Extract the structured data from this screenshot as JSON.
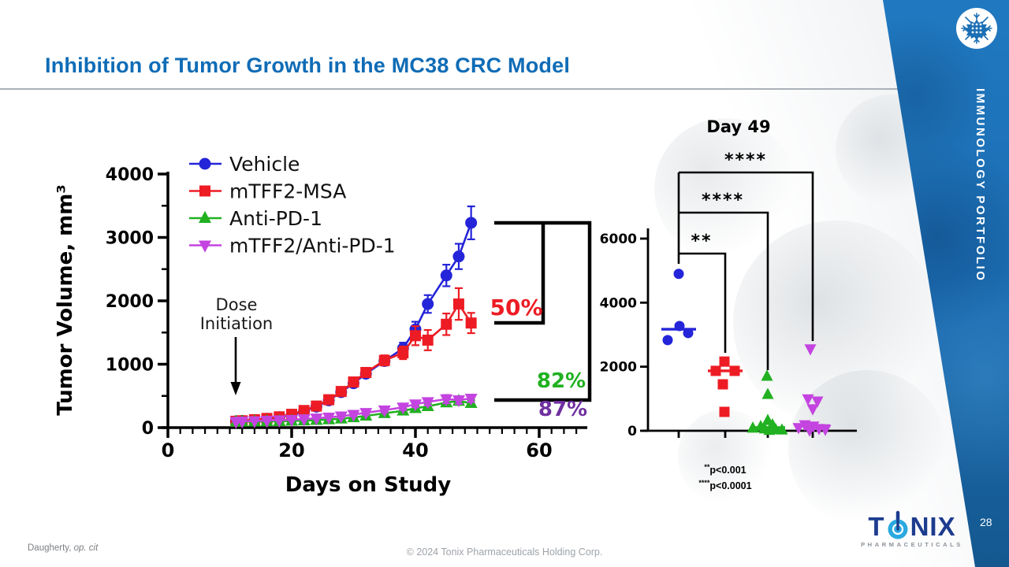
{
  "header": {
    "title": "Inhibition of Tumor Growth in the MC38 CRC Model",
    "title_color": "#0f6cb6"
  },
  "sidebar": {
    "label": "IMMUNOLOGY PORTFOLIO",
    "page_number": "28",
    "band_color": "#1c6fb4",
    "icon": "immune-cell-icon"
  },
  "footer": {
    "left_normal": "Daugherty, ",
    "left_italic": "op. cit",
    "center": "© 2024 Tonix Pharmaceuticals Holding Corp."
  },
  "logo": {
    "t1": "T",
    "o_icon": "power-button-o-icon",
    "t2": "NIX",
    "subtitle": "PHARMACEUTICALS",
    "dark_blue": "#1d3c8f",
    "light_blue": "#2aa9e0"
  },
  "chart_data": [
    {
      "type": "line",
      "title": "",
      "xlabel": "Days on Study",
      "ylabel": "Tumor Volume, mm³",
      "xlim": [
        0,
        67
      ],
      "ylim": [
        0,
        4000
      ],
      "xticks": [
        0,
        20,
        40,
        60
      ],
      "yticks": [
        0,
        1000,
        2000,
        3000,
        4000
      ],
      "x": [
        11,
        12,
        14,
        16,
        18,
        20,
        22,
        24,
        26,
        28,
        30,
        32,
        35,
        38,
        40,
        42,
        45,
        47,
        49
      ],
      "series": [
        {
          "name": "Vehicle",
          "color": "#2424d9",
          "marker": "circle",
          "values": [
            100,
            105,
            120,
            140,
            165,
            200,
            260,
            330,
            430,
            560,
            700,
            850,
            1050,
            1250,
            1550,
            1950,
            2400,
            2700,
            3230
          ],
          "err": [
            0,
            0,
            0,
            0,
            0,
            0,
            0,
            0,
            0,
            30,
            40,
            50,
            70,
            90,
            120,
            140,
            170,
            200,
            260
          ]
        },
        {
          "name": "mTFF2-MSA",
          "color": "#ed1c24",
          "marker": "square",
          "values": [
            100,
            108,
            125,
            145,
            170,
            210,
            270,
            340,
            440,
            570,
            720,
            870,
            1060,
            1180,
            1450,
            1380,
            1630,
            1950,
            1650
          ],
          "err": [
            0,
            0,
            0,
            0,
            0,
            0,
            0,
            0,
            0,
            0,
            0,
            0,
            80,
            100,
            150,
            160,
            170,
            250,
            160
          ]
        },
        {
          "name": "Anti-PD-1",
          "color": "#21b121",
          "marker": "triangle-up",
          "values": [
            90,
            92,
            95,
            98,
            100,
            105,
            110,
            118,
            128,
            140,
            160,
            185,
            225,
            265,
            305,
            335,
            395,
            420,
            385
          ],
          "err": [
            0,
            0,
            0,
            0,
            0,
            0,
            0,
            0,
            0,
            20,
            22,
            25,
            30,
            35,
            40,
            45,
            55,
            60,
            50
          ]
        },
        {
          "name": "mTFF2/Anti-PD-1",
          "color": "#c444e0",
          "marker": "triangle-down",
          "values": [
            95,
            100,
            105,
            112,
            118,
            125,
            135,
            148,
            162,
            180,
            205,
            235,
            275,
            320,
            370,
            405,
            450,
            435,
            460
          ],
          "err": [
            0,
            0,
            0,
            0,
            0,
            0,
            0,
            0,
            0,
            25,
            28,
            32,
            36,
            42,
            48,
            55,
            65,
            60,
            55
          ]
        }
      ],
      "annotations": {
        "dose_line1": "Dose",
        "dose_line2": "Initiation",
        "dose_day": 11,
        "inhibition": [
          {
            "label": "50%",
            "color": "#ed1c24",
            "vs": "mTFF2-MSA"
          },
          {
            "label": "82%",
            "color": "#21b121",
            "vs": "Anti-PD-1"
          },
          {
            "label": "87%",
            "color": "#7030a0",
            "vs": "mTFF2/Anti-PD-1"
          }
        ]
      },
      "legend_position": "top-left-inside",
      "grid": false
    },
    {
      "type": "scatter",
      "title": "Day 49",
      "ylim": [
        0,
        6000
      ],
      "yticks": [
        0,
        2000,
        4000,
        6000
      ],
      "groups": [
        {
          "name": "Vehicle",
          "color": "#2424d9",
          "marker": "circle",
          "median": 3170,
          "points": [
            {
              "dx": 0,
              "v": 4900
            },
            {
              "dx": 1,
              "v": 3270
            },
            {
              "dx": 12,
              "v": 3050
            },
            {
              "dx": -14,
              "v": 2830
            }
          ]
        },
        {
          "name": "mTFF2-MSA",
          "color": "#ed1c24",
          "marker": "square",
          "median": 1870,
          "points": [
            {
              "dx": -1,
              "v": 2160
            },
            {
              "dx": -12,
              "v": 1870
            },
            {
              "dx": 12,
              "v": 1870
            },
            {
              "dx": -3,
              "v": 1450
            },
            {
              "dx": -1,
              "v": 590
            }
          ]
        },
        {
          "name": "Anti-PD-1",
          "color": "#21b121",
          "marker": "triangle-up",
          "median": 100,
          "points": [
            {
              "dx": -1,
              "v": 1700
            },
            {
              "dx": 0,
              "v": 1130
            },
            {
              "dx": 0,
              "v": 320
            },
            {
              "dx": 6,
              "v": 180
            },
            {
              "dx": -9,
              "v": 130
            },
            {
              "dx": -19,
              "v": 80
            },
            {
              "dx": -4,
              "v": 55
            },
            {
              "dx": 10,
              "v": 35
            },
            {
              "dx": 18,
              "v": 20
            },
            {
              "dx": 2,
              "v": 10
            }
          ]
        },
        {
          "name": "mTFF2/Anti-PD-1",
          "color": "#c444e0",
          "marker": "triangle-down",
          "median": 160,
          "points": [
            {
              "dx": -3,
              "v": 2560
            },
            {
              "dx": -6,
              "v": 1000
            },
            {
              "dx": 6,
              "v": 930
            },
            {
              "dx": 0,
              "v": 690
            },
            {
              "dx": -10,
              "v": 190
            },
            {
              "dx": 1,
              "v": 150
            },
            {
              "dx": -18,
              "v": 100
            },
            {
              "dx": 8,
              "v": 75
            },
            {
              "dx": 16,
              "v": 45
            },
            {
              "dx": -4,
              "v": 20
            }
          ]
        }
      ],
      "significance": [
        {
          "compare": "Vehicle vs mTFF2-MSA",
          "label": "**"
        },
        {
          "compare": "Vehicle vs Anti-PD-1",
          "label": "****"
        },
        {
          "compare": "Vehicle vs mTFF2/Anti-PD-1",
          "label": "****"
        }
      ],
      "notes": [
        {
          "stars": "**",
          "text": "p<0.001"
        },
        {
          "stars": "****",
          "text": "p<0.0001"
        }
      ],
      "grid": false
    }
  ]
}
